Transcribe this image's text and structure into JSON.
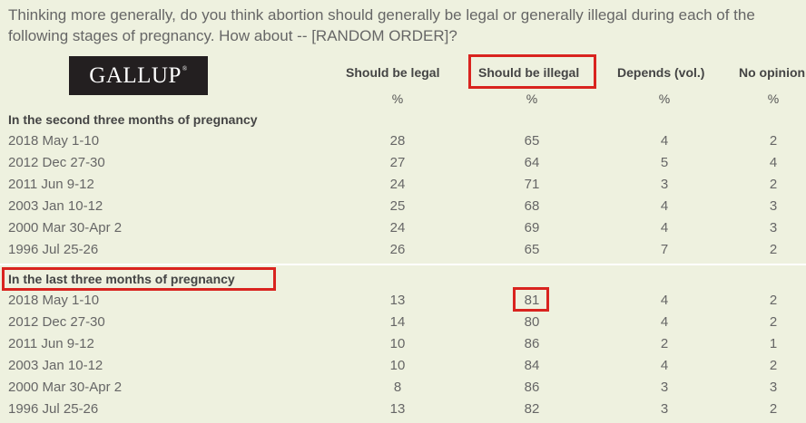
{
  "question": "Thinking more generally, do you think abortion should generally be legal or generally illegal during each of the following stages of pregnancy. How about -- [RANDOM ORDER]?",
  "logo": "GALLUP",
  "logo_mark": "®",
  "columns": [
    "Should be legal",
    "Should be illegal",
    "Depends (vol.)",
    "No opinion"
  ],
  "pct_symbol": "%",
  "colors": {
    "background": "#eef1df",
    "highlight": "#d9241f",
    "logo_bg": "#231f20"
  },
  "sections": [
    {
      "title": "In the second three months of pregnancy",
      "rows": [
        {
          "date": "2018 May 1-10",
          "values": [
            "28",
            "65",
            "4",
            "2"
          ]
        },
        {
          "date": "2012 Dec 27-30",
          "values": [
            "27",
            "64",
            "5",
            "4"
          ]
        },
        {
          "date": "2011 Jun 9-12",
          "values": [
            "24",
            "71",
            "3",
            "2"
          ]
        },
        {
          "date": "2003 Jan 10-12",
          "values": [
            "25",
            "68",
            "4",
            "3"
          ]
        },
        {
          "date": "2000 Mar 30-Apr 2",
          "values": [
            "24",
            "69",
            "4",
            "3"
          ]
        },
        {
          "date": "1996 Jul 25-26",
          "values": [
            "26",
            "65",
            "7",
            "2"
          ]
        }
      ]
    },
    {
      "title": "In the last three months of pregnancy",
      "rows": [
        {
          "date": "2018 May 1-10",
          "values": [
            "13",
            "81",
            "4",
            "2"
          ]
        },
        {
          "date": "2012 Dec 27-30",
          "values": [
            "14",
            "80",
            "4",
            "2"
          ]
        },
        {
          "date": "2011 Jun 9-12",
          "values": [
            "10",
            "86",
            "2",
            "1"
          ]
        },
        {
          "date": "2003 Jan 10-12",
          "values": [
            "10",
            "84",
            "4",
            "2"
          ]
        },
        {
          "date": "2000 Mar 30-Apr 2",
          "values": [
            "8",
            "86",
            "3",
            "3"
          ]
        },
        {
          "date": "1996 Jul 25-26",
          "values": [
            "13",
            "82",
            "3",
            "2"
          ]
        }
      ]
    }
  ]
}
